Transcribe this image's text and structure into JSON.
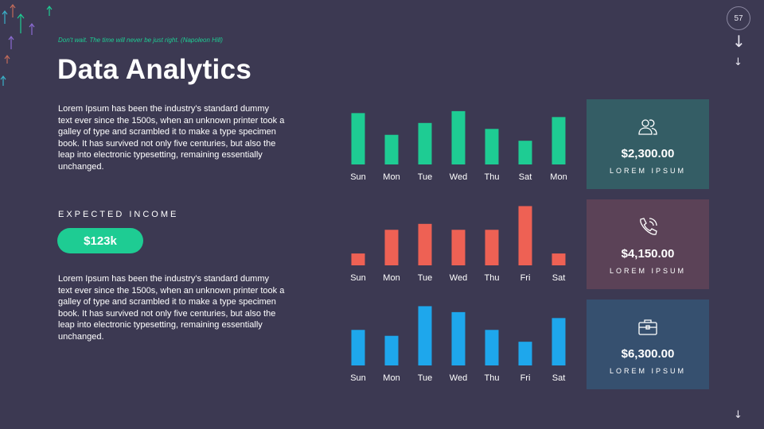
{
  "slide": {
    "page_number": "57",
    "quote": "Don't wait. The time will never be just right. (Napoleon Hill)",
    "title": "Data Analytics"
  },
  "left_panel": {
    "paragraph_1": "Lorem Ipsum has been the industry's standard dummy text ever since the 1500s, when an unknown printer took a galley of type and scrambled it to make a type specimen book. It has survived not only five centuries, but also the leap into electronic typesetting, remaining essentially unchanged.",
    "income_label": "EXPECTED INCOME",
    "income_value": "$123k",
    "paragraph_2": "Lorem Ipsum has been the industry's standard dummy text ever since the 1500s, when an unknown printer took a galley of type and scrambled it to make a type specimen book. It has survived not only five centuries, but also the leap into electronic typesetting, remaining essentially unchanged."
  },
  "cards": [
    {
      "value": "$2,300.00",
      "label": "LOREM IPSUM",
      "icon": "users-icon",
      "color": "#345d65"
    },
    {
      "value": "$4,150.00",
      "label": "LOREM IPSUM",
      "icon": "phone-icon",
      "color": "#5b4257"
    },
    {
      "value": "$6,300.00",
      "label": "LOREM IPSUM",
      "icon": "briefcase-icon",
      "color": "#36506f"
    }
  ],
  "colors": {
    "background": "#3c3952",
    "accent_green": "#1ecc93",
    "accent_red": "#ee6154",
    "accent_blue": "#1ea7ec"
  },
  "chart_data": [
    {
      "type": "bar",
      "title": "",
      "color": "#1ecc93",
      "categories": [
        "Sun",
        "Mon",
        "Tue",
        "Wed",
        "Thu",
        "Sat",
        "Mon"
      ],
      "values": [
        52,
        30,
        42,
        54,
        36,
        24,
        48
      ],
      "ylim": [
        0,
        70
      ]
    },
    {
      "type": "bar",
      "title": "",
      "color": "#ee6154",
      "categories": [
        "Sun",
        "Mon",
        "Tue",
        "Wed",
        "Thu",
        "Fri",
        "Sat"
      ],
      "values": [
        12,
        36,
        42,
        36,
        36,
        60,
        12
      ],
      "ylim": [
        0,
        70
      ]
    },
    {
      "type": "bar",
      "title": "",
      "color": "#1ea7ec",
      "categories": [
        "Sun",
        "Mon",
        "Tue",
        "Wed",
        "Thu",
        "Fri",
        "Sat"
      ],
      "values": [
        36,
        30,
        60,
        54,
        36,
        24,
        48
      ],
      "ylim": [
        0,
        70
      ]
    }
  ]
}
